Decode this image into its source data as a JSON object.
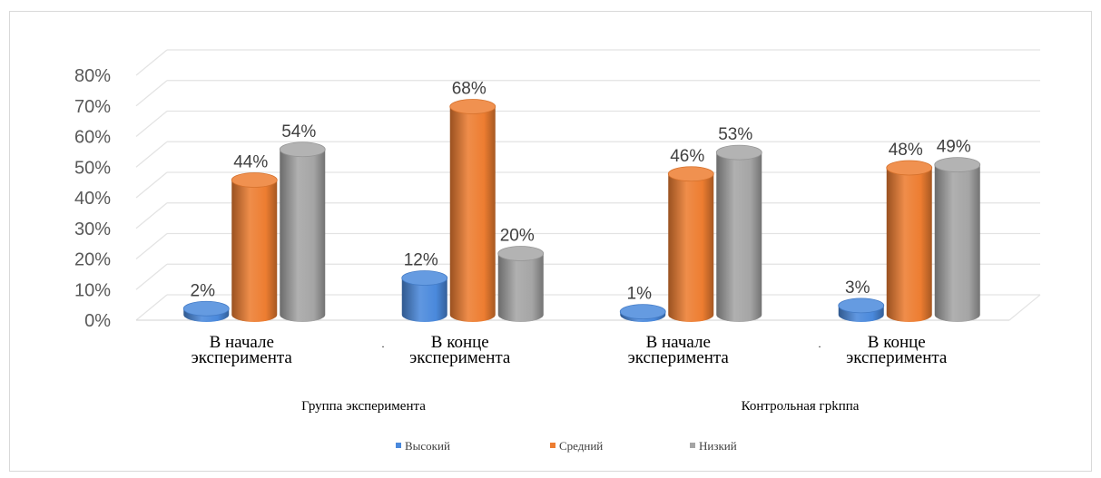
{
  "chart_data": {
    "type": "bar",
    "style": "3d-cylinder",
    "categories": [
      [
        "В начале",
        "эксперимента"
      ],
      [
        "В конце",
        "эксперимента"
      ],
      [
        "В начале",
        "эксперимента"
      ],
      [
        "В конце",
        "эксперимента"
      ]
    ],
    "groups": [
      {
        "label": "Группа эксперимента",
        "categories": [
          0,
          1
        ]
      },
      {
        "label": "Контрольная грkппа",
        "categories": [
          2,
          3
        ]
      }
    ],
    "series": [
      {
        "name": "Высокий",
        "color": "#4a89dc",
        "values": [
          2,
          12,
          1,
          3
        ]
      },
      {
        "name": "Средний",
        "color": "#ed7d31",
        "values": [
          44,
          68,
          46,
          48
        ]
      },
      {
        "name": "Низкий",
        "color": "#a5a5a5",
        "values": [
          54,
          20,
          53,
          49
        ]
      }
    ],
    "data_labels": [
      [
        "2%",
        "44%",
        "54%"
      ],
      [
        "12%",
        "68%",
        "20%"
      ],
      [
        "1%",
        "46%",
        "53%"
      ],
      [
        "3%",
        "48%",
        "49%"
      ]
    ],
    "yticks": [
      "0%",
      "10%",
      "20%",
      "30%",
      "40%",
      "50%",
      "60%",
      "70%",
      "80%"
    ],
    "ylim": [
      0,
      80
    ],
    "grid": true,
    "legend_position": "bottom",
    "title": "",
    "xlabel": "",
    "ylabel": ""
  }
}
